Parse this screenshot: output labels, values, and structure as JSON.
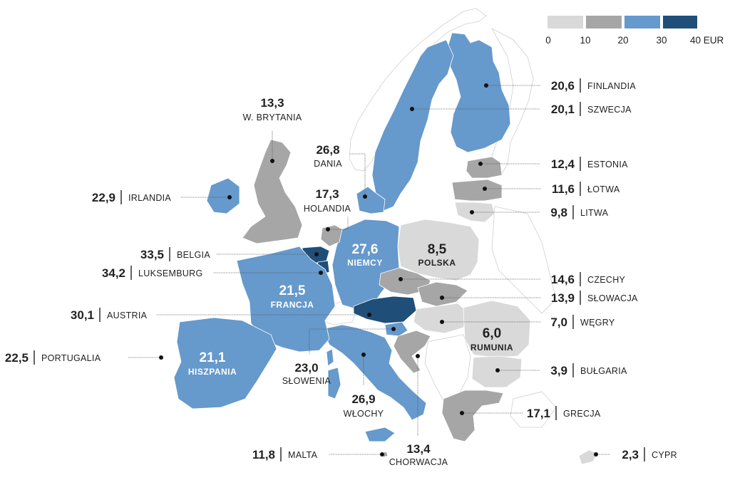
{
  "colors": {
    "bin_0_10": "#d9d9d9",
    "bin_10_20": "#a6a6a6",
    "bin_20_30": "#6699cc",
    "bin_30_40": "#1f4e79",
    "non_eu": "#ffffff",
    "border": "#c8c8c8"
  },
  "legend": {
    "ticks": [
      "0",
      "10",
      "20",
      "30",
      "40 EUR"
    ]
  },
  "countries": [
    {
      "id": "finlandia",
      "value": "20,6",
      "label": "FINLANDIA"
    },
    {
      "id": "szwecja",
      "value": "20,1",
      "label": "SZWECJA"
    },
    {
      "id": "estonia",
      "value": "12,4",
      "label": "ESTONIA"
    },
    {
      "id": "lotwa",
      "value": "11,6",
      "label": "ŁOTWA"
    },
    {
      "id": "litwa",
      "value": "9,8",
      "label": "LITWA"
    },
    {
      "id": "czechy",
      "value": "14,6",
      "label": "CZECHY"
    },
    {
      "id": "slowacja",
      "value": "13,9",
      "label": "SŁOWACJA"
    },
    {
      "id": "wegry",
      "value": "7,0",
      "label": "WĘGRY"
    },
    {
      "id": "bulgaria",
      "value": "3,9",
      "label": "BUŁGARIA"
    },
    {
      "id": "grecja",
      "value": "17,1",
      "label": "GRECJA"
    },
    {
      "id": "cypr",
      "value": "2,3",
      "label": "CYPR"
    },
    {
      "id": "malta",
      "value": "11,8",
      "label": "MALTA"
    },
    {
      "id": "chorwacja",
      "value": "13,4",
      "label": "CHORWACJA"
    },
    {
      "id": "wlochy",
      "value": "26,9",
      "label": "WŁOCHY"
    },
    {
      "id": "slowenia",
      "value": "23,0",
      "label": "SŁOWENIA"
    },
    {
      "id": "portugalia",
      "value": "22,5",
      "label": "PORTUGALIA"
    },
    {
      "id": "austria",
      "value": "30,1",
      "label": "AUSTRIA"
    },
    {
      "id": "luksemburg",
      "value": "34,2",
      "label": "LUKSEMBURG"
    },
    {
      "id": "belgia",
      "value": "33,5",
      "label": "BELGIA"
    },
    {
      "id": "irlandia",
      "value": "22,9",
      "label": "IRLANDIA"
    },
    {
      "id": "holandia",
      "value": "17,3",
      "label": "HOLANDIA"
    },
    {
      "id": "dania",
      "value": "26,8",
      "label": "DANIA"
    },
    {
      "id": "wbrytania",
      "value": "13,3",
      "label": "W. BRYTANIA"
    },
    {
      "id": "niemcy",
      "value": "27,6",
      "label": "NIEMCY"
    },
    {
      "id": "polska",
      "value": "8,5",
      "label": "POLSKA"
    },
    {
      "id": "francja",
      "value": "21,5",
      "label": "FRANCJA"
    },
    {
      "id": "hiszpania",
      "value": "21,1",
      "label": "HISZPANIA"
    },
    {
      "id": "rumunia",
      "value": "6,0",
      "label": "RUMUNIA"
    }
  ]
}
